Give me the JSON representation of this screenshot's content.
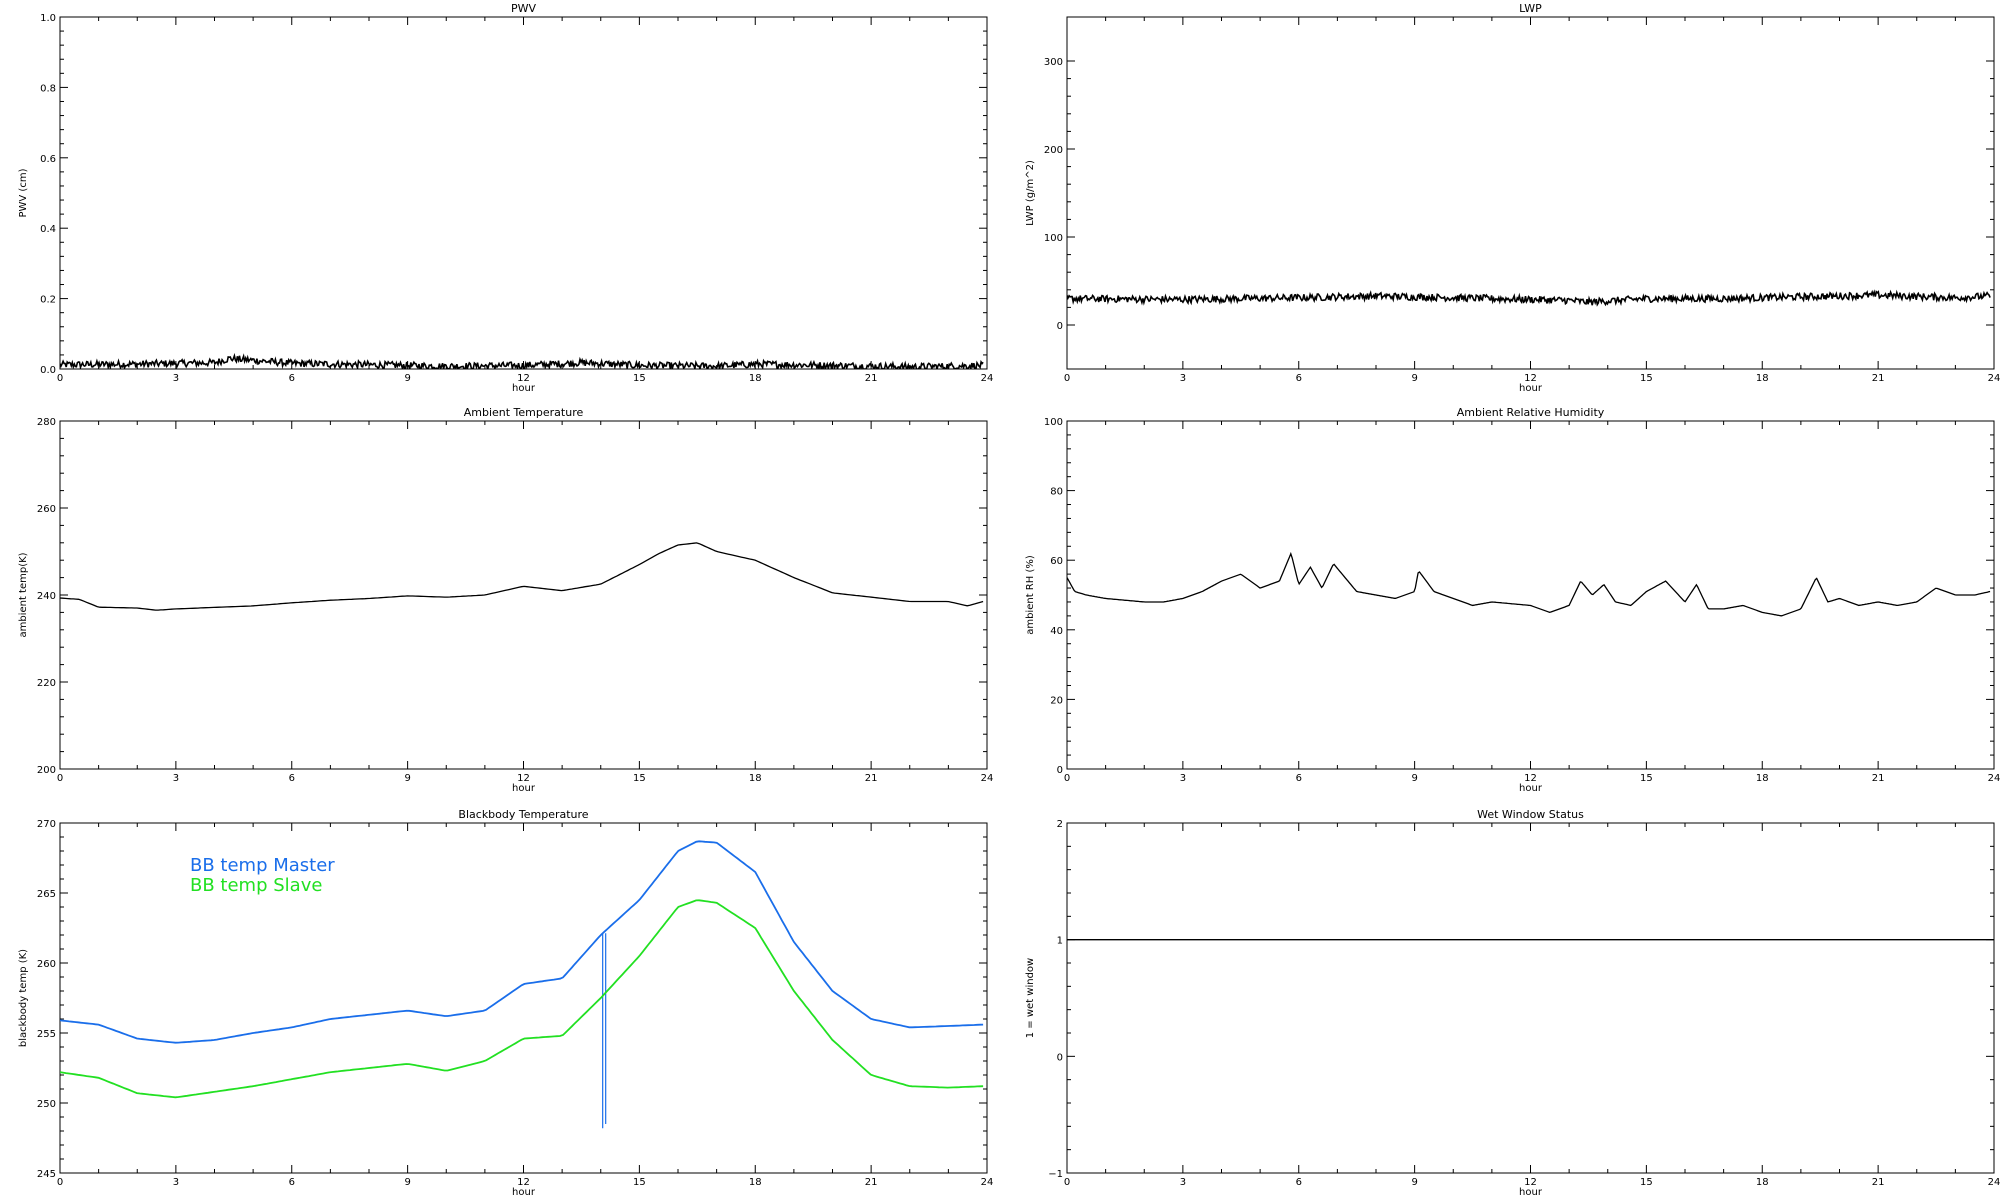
{
  "chart_data": [
    {
      "type": "line",
      "title": "PWV",
      "xlabel": "hour",
      "ylabel": "PWV (cm)",
      "xlim": [
        0,
        24
      ],
      "ylim": [
        0.0,
        1.0
      ],
      "x_ticks": [
        "0",
        "3",
        "6",
        "9",
        "12",
        "15",
        "18",
        "21",
        "24"
      ],
      "y_ticks": [
        "0.0",
        "0.2",
        "0.4",
        "0.6",
        "0.8",
        "1.0"
      ],
      "series": [
        {
          "color": "#000000",
          "style": "noisy-band",
          "x": [
            0,
            2,
            4,
            4.4,
            6,
            8,
            10,
            12,
            13.5,
            15,
            17,
            18,
            20,
            22,
            23.9
          ],
          "y": [
            0.012,
            0.014,
            0.018,
            0.03,
            0.016,
            0.012,
            0.008,
            0.01,
            0.018,
            0.01,
            0.008,
            0.014,
            0.01,
            0.006,
            0.01
          ],
          "noise": 0.01
        }
      ]
    },
    {
      "type": "line",
      "title": "LWP",
      "xlabel": "hour",
      "ylabel": "LWP (g/m^2)",
      "xlim": [
        0,
        24
      ],
      "ylim": [
        -50,
        350
      ],
      "x_ticks": [
        "0",
        "3",
        "6",
        "9",
        "12",
        "15",
        "18",
        "21",
        "24"
      ],
      "y_ticks": [
        "0",
        "100",
        "200",
        "300"
      ],
      "series": [
        {
          "color": "#000000",
          "style": "noisy-band",
          "x": [
            0,
            3,
            6,
            8,
            10,
            12,
            13,
            13.5,
            15,
            17,
            19,
            21,
            23,
            23.9
          ],
          "y": [
            30,
            29,
            31,
            33,
            31,
            29,
            28,
            26,
            30,
            30,
            32,
            34,
            31,
            33
          ],
          "noise": 4
        }
      ]
    },
    {
      "type": "line",
      "title": "Ambient Temperature",
      "xlabel": "hour",
      "ylabel": "ambient temp(K)",
      "xlim": [
        0,
        24
      ],
      "ylim": [
        200,
        280
      ],
      "x_ticks": [
        "0",
        "3",
        "6",
        "9",
        "12",
        "15",
        "18",
        "21",
        "24"
      ],
      "y_ticks": [
        "200",
        "220",
        "240",
        "260",
        "280"
      ],
      "series": [
        {
          "color": "#000000",
          "x": [
            0,
            0.5,
            1,
            2,
            2.5,
            3,
            5,
            6,
            7,
            8,
            9,
            10,
            11,
            12,
            13,
            14,
            15,
            15.5,
            16,
            16.5,
            17,
            18,
            19,
            20,
            21,
            22,
            23,
            23.5,
            23.9
          ],
          "y": [
            239.3,
            239.0,
            237.2,
            237.0,
            236.5,
            236.8,
            237.5,
            238.2,
            238.8,
            239.2,
            239.8,
            239.5,
            240.0,
            242.0,
            241.0,
            242.5,
            247.0,
            249.5,
            251.5,
            252.0,
            250.0,
            248.0,
            244.0,
            240.5,
            239.5,
            238.5,
            238.5,
            237.5,
            238.5
          ]
        }
      ]
    },
    {
      "type": "line",
      "title": "Ambient Relative Humidity",
      "xlabel": "hour",
      "ylabel": "ambient RH (%)",
      "xlim": [
        0,
        24
      ],
      "ylim": [
        0,
        100
      ],
      "x_ticks": [
        "0",
        "3",
        "6",
        "9",
        "12",
        "15",
        "18",
        "21",
        "24"
      ],
      "y_ticks": [
        "0",
        "20",
        "40",
        "60",
        "80",
        "100"
      ],
      "series": [
        {
          "color": "#000000",
          "x": [
            0,
            0.2,
            0.5,
            1,
            2,
            2.5,
            3,
            3.5,
            4,
            4.5,
            5,
            5.5,
            5.8,
            6,
            6.3,
            6.6,
            6.9,
            7.5,
            8,
            8.5,
            9,
            9.1,
            9.5,
            10,
            10.5,
            11,
            12,
            12.5,
            13,
            13.3,
            13.6,
            13.9,
            14.2,
            14.6,
            15,
            15.5,
            16,
            16.3,
            16.6,
            17,
            17.5,
            18,
            18.5,
            19,
            19.4,
            19.7,
            20,
            20.5,
            21,
            21.5,
            22,
            22.5,
            23,
            23.5,
            23.9
          ],
          "y": [
            55,
            51,
            50,
            49,
            48,
            48,
            49,
            51,
            54,
            56,
            52,
            54,
            62,
            53,
            58,
            52,
            59,
            51,
            50,
            49,
            51,
            57,
            51,
            49,
            47,
            48,
            47,
            45,
            47,
            54,
            50,
            53,
            48,
            47,
            51,
            54,
            48,
            53,
            46,
            46,
            47,
            45,
            44,
            46,
            55,
            48,
            49,
            47,
            48,
            47,
            48,
            52,
            50,
            50,
            51
          ]
        }
      ]
    },
    {
      "type": "line",
      "title": "Blackbody Temperature",
      "xlabel": "hour",
      "ylabel": "blackbody temp (K)",
      "xlim": [
        0,
        24
      ],
      "ylim": [
        245,
        270
      ],
      "x_ticks": [
        "0",
        "3",
        "6",
        "9",
        "12",
        "15",
        "18",
        "21",
        "24"
      ],
      "y_ticks": [
        "245",
        "250",
        "255",
        "260",
        "265",
        "270"
      ],
      "legend_position": "top-left",
      "series": [
        {
          "name": "BB temp Master",
          "color": "#1a6eea",
          "x": [
            0,
            1,
            2,
            3,
            4,
            5,
            6,
            7,
            8,
            9,
            10,
            11,
            12,
            13,
            14,
            15,
            16,
            16.5,
            17,
            18,
            19,
            20,
            21,
            22,
            23,
            23.9
          ],
          "y": [
            255.9,
            255.6,
            254.6,
            254.3,
            254.5,
            255.0,
            255.4,
            256.0,
            256.3,
            256.6,
            256.2,
            256.6,
            258.5,
            258.9,
            262.0,
            264.5,
            268.0,
            268.7,
            268.6,
            266.5,
            261.5,
            258.0,
            256.0,
            255.4,
            255.5,
            255.6
          ],
          "spike": {
            "x": 14.05,
            "y_min": 248.2
          }
        },
        {
          "name": "BB temp Slave",
          "color": "#22e022",
          "x": [
            0,
            1,
            2,
            3,
            4,
            5,
            6,
            7,
            8,
            9,
            10,
            11,
            12,
            13,
            14,
            15,
            16,
            16.5,
            17,
            18,
            19,
            20,
            21,
            22,
            23,
            23.9
          ],
          "y": [
            252.2,
            251.8,
            250.7,
            250.4,
            250.8,
            251.2,
            251.7,
            252.2,
            252.5,
            252.8,
            252.3,
            253.0,
            254.6,
            254.8,
            257.5,
            260.5,
            264.0,
            264.5,
            264.3,
            262.5,
            258.0,
            254.5,
            252.0,
            251.2,
            251.1,
            251.2
          ]
        }
      ]
    },
    {
      "type": "line",
      "title": "Wet Window Status",
      "xlabel": "hour",
      "ylabel": "1 = wet window",
      "xlim": [
        0,
        24
      ],
      "ylim": [
        -1,
        2
      ],
      "x_ticks": [
        "0",
        "3",
        "6",
        "9",
        "12",
        "15",
        "18",
        "21",
        "24"
      ],
      "y_ticks": [
        "−1",
        "0",
        "1",
        "2"
      ],
      "series": [
        {
          "color": "#000000",
          "x": [
            0,
            24
          ],
          "y": [
            1,
            1
          ]
        }
      ]
    }
  ]
}
